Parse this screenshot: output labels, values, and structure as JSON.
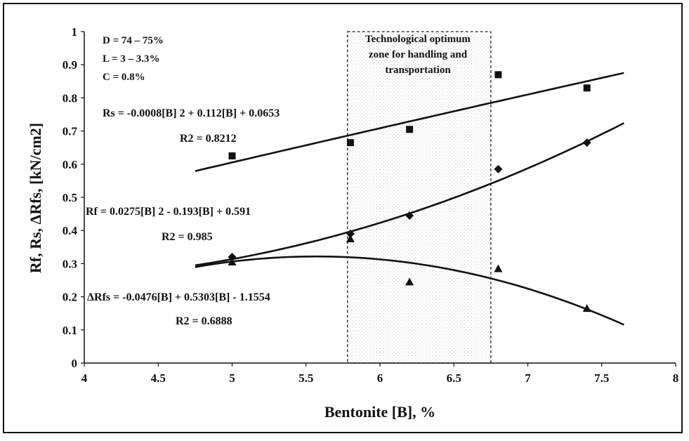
{
  "chart_data": {
    "type": "scatter",
    "xlabel": "Bentonite [B], %",
    "ylabel": "Rf, Rs, ΔRfs, [kN/cm2]",
    "xlim": [
      4,
      8
    ],
    "ylim": [
      0,
      1
    ],
    "xticks": [
      "4",
      "4.5",
      "5",
      "5.5",
      "6",
      "6.5",
      "7",
      "7.5",
      "8"
    ],
    "yticks": [
      "0",
      "0.1",
      "0.2",
      "0.3",
      "0.4",
      "0.5",
      "0.6",
      "0.7",
      "0.8",
      "0.9",
      "1"
    ],
    "grid": false,
    "conditions": [
      "D = 74 – 75%",
      "L = 3 – 3.3%",
      "C = 0.8%"
    ],
    "zone": {
      "label_lines": [
        "Technological optimum",
        "zone for handling and",
        "transportation"
      ],
      "x_range": [
        5.78,
        6.75
      ]
    },
    "series": [
      {
        "name": "Rs",
        "marker": "square",
        "x": [
          5.0,
          5.8,
          6.2,
          6.8,
          7.4
        ],
        "y": [
          0.625,
          0.665,
          0.705,
          0.87,
          0.83
        ],
        "fit": {
          "a": -0.0008,
          "b": 0.112,
          "c": 0.0653,
          "x_range": [
            4.75,
            7.65
          ]
        },
        "equation": "Rs = -0.0008[B] 2 + 0.112[B] + 0.0653",
        "r2": "R2 = 0.8212"
      },
      {
        "name": "Rf",
        "marker": "diamond",
        "x": [
          5.0,
          5.8,
          6.2,
          6.8,
          7.4
        ],
        "y": [
          0.32,
          0.39,
          0.445,
          0.585,
          0.665
        ],
        "fit": {
          "a": 0.0275,
          "b": -0.193,
          "c": 0.591,
          "x_range": [
            4.75,
            7.65
          ]
        },
        "equation": "Rf = 0.0275[B] 2 - 0.193[B] + 0.591",
        "r2": "R2 = 0.985"
      },
      {
        "name": "ΔRfs",
        "marker": "triangle",
        "x": [
          5.0,
          5.8,
          6.2,
          6.8,
          7.4
        ],
        "y": [
          0.305,
          0.375,
          0.245,
          0.285,
          0.165
        ],
        "fit": {
          "a": -0.0476,
          "b": 0.5303,
          "c": -1.1554,
          "x_range": [
            4.75,
            7.65
          ]
        },
        "equation": "ΔRfs = -0.0476[B] + 0.5303[B] - 1.1554",
        "r2": "R2 = 0.6888"
      }
    ]
  }
}
